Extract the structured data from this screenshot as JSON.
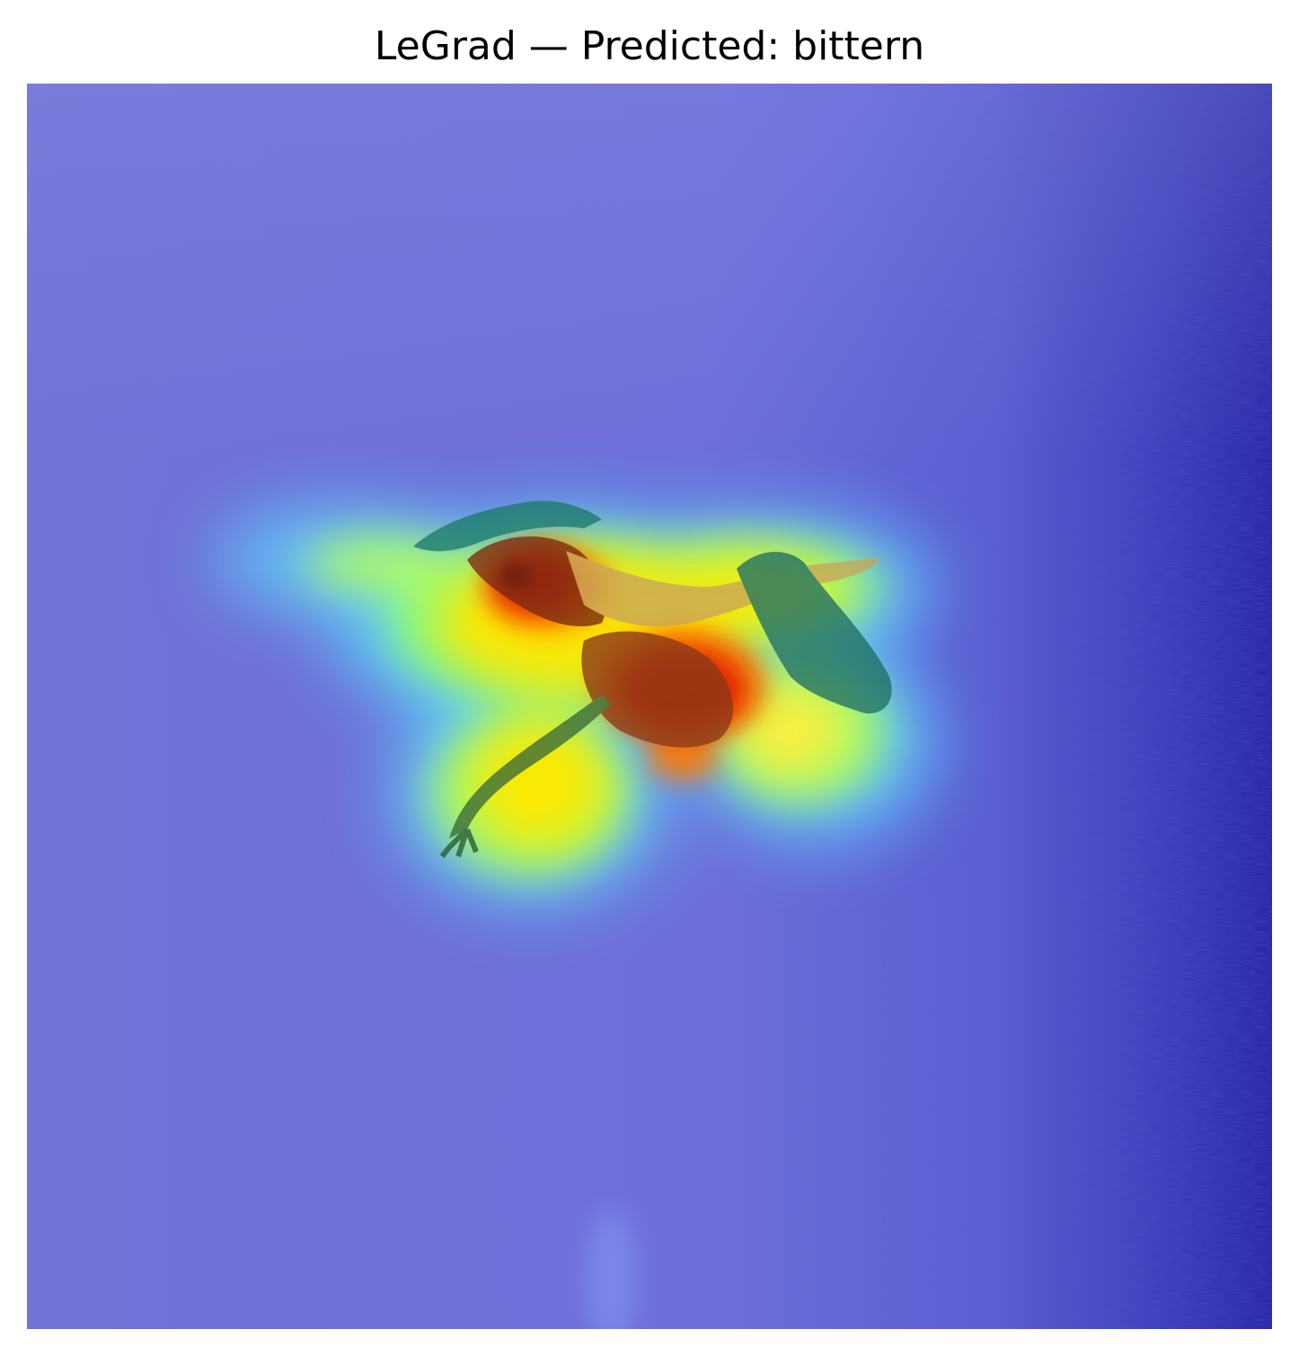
{
  "figure": {
    "title": "LeGrad — Predicted: bittern"
  },
  "heatmap": {
    "colormap": "jet",
    "colors": {
      "low": "#00008f",
      "low_mid": "#5a64e8",
      "mid": "#00d8ff",
      "mid_high": "#7dff7a",
      "high": "#ffe600",
      "higher": "#ff7a00",
      "max": "#b00000"
    }
  },
  "photo": {
    "subject_icon": "bird-icon",
    "background_icon": "water-icon"
  }
}
